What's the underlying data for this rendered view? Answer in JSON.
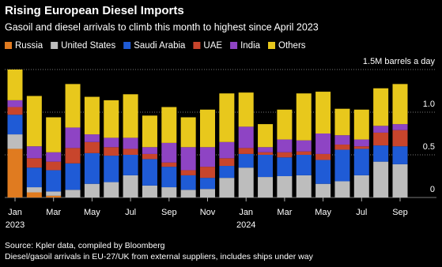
{
  "chart_data": {
    "type": "stacked-bar",
    "title": "Rising European Diesel Imports",
    "subtitle": "Gasoil and diesel arrivals to climb this month to highest since April 2023",
    "categories": [
      "Jan",
      null,
      "Mar",
      null,
      "May",
      null,
      "Jul",
      null,
      "Sep",
      null,
      "Nov",
      null,
      "Jan",
      null,
      "Mar",
      null,
      "May",
      null,
      "Jul",
      null,
      "Sep"
    ],
    "years": [
      "2023",
      null,
      null,
      null,
      null,
      null,
      null,
      null,
      null,
      null,
      null,
      null,
      "2024",
      null,
      null,
      null,
      null,
      null,
      null,
      null,
      null
    ],
    "series": [
      {
        "name": "Russia",
        "color": "#e07b20",
        "values": [
          0.57,
          0.06,
          0.02,
          0,
          0,
          0,
          0,
          0,
          0,
          0,
          0,
          0,
          0,
          0,
          0,
          0,
          0,
          0,
          0,
          0,
          0
        ]
      },
      {
        "name": "United States",
        "color": "#bdbdbd",
        "values": [
          0.17,
          0.06,
          0.05,
          0.09,
          0.16,
          0.18,
          0.26,
          0.14,
          0.12,
          0.09,
          0.1,
          0.23,
          0.35,
          0.24,
          0.25,
          0.26,
          0.16,
          0.19,
          0.26,
          0.42,
          0.39
        ]
      },
      {
        "name": "Saudi Arabia",
        "color": "#1f5bd6",
        "values": [
          0.23,
          0.23,
          0.25,
          0.31,
          0.36,
          0.31,
          0.24,
          0.31,
          0.24,
          0.17,
          0.13,
          0.14,
          0.16,
          0.26,
          0.22,
          0.24,
          0.28,
          0.37,
          0.31,
          0.19,
          0.21
        ]
      },
      {
        "name": "UAE",
        "color": "#c8452c",
        "values": [
          0.09,
          0.11,
          0.1,
          0.18,
          0.13,
          0.1,
          0.07,
          0.06,
          0.05,
          0.06,
          0.13,
          0.09,
          0.07,
          0.03,
          0.06,
          0.04,
          0.07,
          0.06,
          0.03,
          0.15,
          0.19
        ]
      },
      {
        "name": "India",
        "color": "#8e44c4",
        "values": [
          0.08,
          0.14,
          0.11,
          0.24,
          0.09,
          0.11,
          0.13,
          0.08,
          0.23,
          0.27,
          0.23,
          0.19,
          0.25,
          0.06,
          0.15,
          0.13,
          0.24,
          0.11,
          0.08,
          0.08,
          0.07
        ]
      },
      {
        "name": "Others",
        "color": "#e8c81c",
        "values": [
          0.36,
          0.59,
          0.41,
          0.51,
          0.44,
          0.44,
          0.51,
          0.37,
          0.42,
          0.35,
          0.44,
          0.57,
          0.4,
          0.27,
          0.35,
          0.55,
          0.49,
          0.31,
          0.35,
          0.44,
          0.47
        ]
      }
    ],
    "ylim": [
      0,
      1.5
    ],
    "yticks": [
      0,
      0.5,
      {
        "value": 1,
        "label": "1.0"
      },
      {
        "value": 1.5,
        "label": "1.5M barrels a day"
      }
    ],
    "grid": true,
    "source": "Source: Kpler data, compiled by Bloomberg",
    "note": "Diesel/gasoil arrivals in EU-27/UK from external suppliers, includes ships under way"
  }
}
